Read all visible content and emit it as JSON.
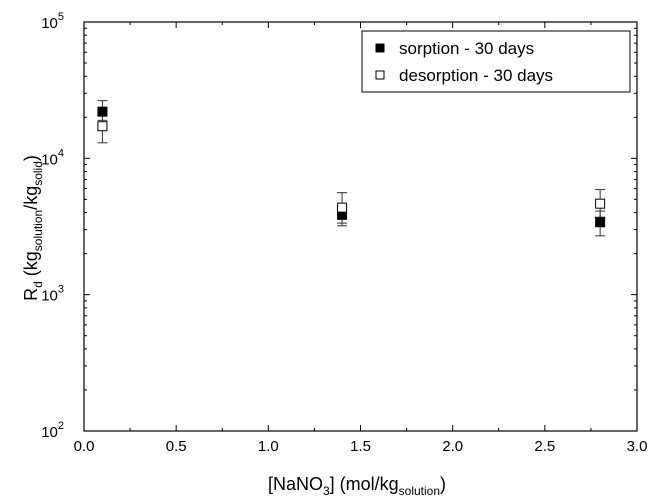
{
  "chart_data": {
    "type": "scatter",
    "title": "",
    "xlabel": {
      "main": "[NaNO",
      "sub1": "3",
      "mid": "] (mol/kg",
      "sub2": "solution",
      "end": ")"
    },
    "ylabel": {
      "R": "R",
      "d": "d",
      "open": " (kg",
      "sub1": "solution",
      "slash": "/kg",
      "sub2": "solid",
      "close": ")"
    },
    "x_scale": "linear",
    "y_scale": "log",
    "xlim": [
      0.0,
      3.0
    ],
    "ylim": [
      100,
      100000
    ],
    "x_ticks": [
      {
        "value": 0.0,
        "label": "0.0"
      },
      {
        "value": 0.5,
        "label": "0.5"
      },
      {
        "value": 1.0,
        "label": "1.0"
      },
      {
        "value": 1.5,
        "label": "1.5"
      },
      {
        "value": 2.0,
        "label": "2.0"
      },
      {
        "value": 2.5,
        "label": "2.5"
      },
      {
        "value": 3.0,
        "label": "3.0"
      }
    ],
    "y_ticks": [
      {
        "value": 100,
        "base": "10",
        "exp": "2"
      },
      {
        "value": 1000,
        "base": "10",
        "exp": "3"
      },
      {
        "value": 10000,
        "base": "10",
        "exp": "4"
      },
      {
        "value": 100000,
        "base": "10",
        "exp": "5"
      }
    ],
    "grid": false,
    "legend_position": "top-right",
    "series": [
      {
        "name": "sorption - 30 days",
        "marker": "filled-square",
        "color": "#000000",
        "points": [
          {
            "x": 0.1,
            "y": 22000,
            "err_low": 19000,
            "err_high": 26500
          },
          {
            "x": 1.4,
            "y": 3850,
            "err_low": 3350,
            "err_high": 4400
          },
          {
            "x": 2.8,
            "y": 3400,
            "err_low": 2700,
            "err_high": 4100
          }
        ]
      },
      {
        "name": "desorption - 30 days",
        "marker": "open-square",
        "color": "#000000",
        "points": [
          {
            "x": 0.1,
            "y": 17200,
            "err_low": 13000,
            "err_high": 22000
          },
          {
            "x": 1.4,
            "y": 4350,
            "err_low": 3200,
            "err_high": 5600
          },
          {
            "x": 2.8,
            "y": 4650,
            "err_low": 3700,
            "err_high": 5900
          }
        ]
      }
    ]
  }
}
